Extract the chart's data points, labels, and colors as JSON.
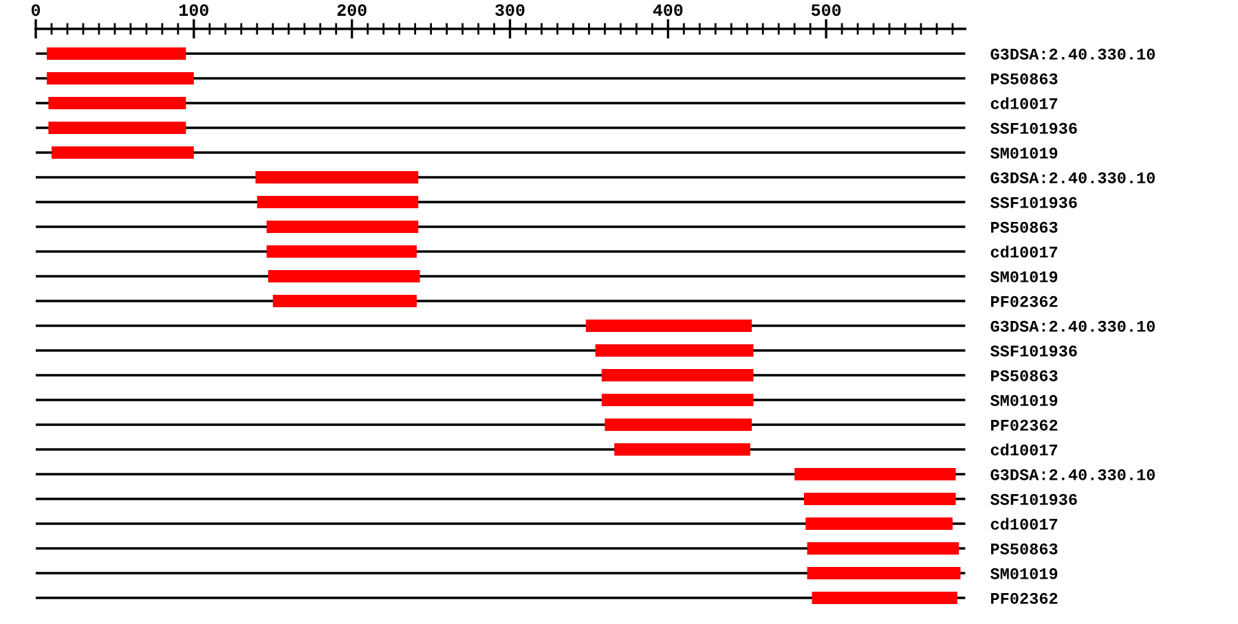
{
  "chart_data": {
    "type": "bar",
    "orientation": "horizontal",
    "color": "#ff0000",
    "categories": [
      "G3DSA:2.40.330.10",
      "PS50863",
      "cd10017",
      "SSF101936",
      "SM01019",
      "G3DSA:2.40.330.10",
      "SSF101936",
      "PS50863",
      "cd10017",
      "SM01019",
      "PF02362",
      "G3DSA:2.40.330.10",
      "SSF101936",
      "PS50863",
      "SM01019",
      "PF02362",
      "cd10017",
      "G3DSA:2.40.330.10",
      "SSF101936",
      "cd10017",
      "PS50863",
      "SM01019",
      "PF02362"
    ],
    "base": [
      7,
      7,
      8,
      8,
      10,
      139,
      140,
      146,
      146,
      147,
      150,
      348,
      354,
      358,
      358,
      360,
      366,
      480,
      486,
      487,
      488,
      488,
      491
    ],
    "values": [
      88,
      93,
      87,
      87,
      90,
      103,
      102,
      96,
      95,
      96,
      91,
      105,
      100,
      96,
      96,
      93,
      86,
      102,
      96,
      93,
      96,
      97,
      92
    ],
    "xlim": [
      0,
      588
    ],
    "xticks": [
      0,
      {
        "value": 10,
        "label": null
      },
      {
        "value": 20,
        "label": null
      },
      {
        "value": 30,
        "label": null
      },
      {
        "value": 40,
        "label": null
      },
      {
        "value": 50,
        "label": null
      },
      {
        "value": 60,
        "label": null
      },
      {
        "value": 70,
        "label": null
      },
      {
        "value": 80,
        "label": null
      },
      {
        "value": 90,
        "label": null
      },
      100,
      {
        "value": 110,
        "label": null
      },
      {
        "value": 120,
        "label": null
      },
      {
        "value": 130,
        "label": null
      },
      {
        "value": 140,
        "label": null
      },
      {
        "value": 150,
        "label": null
      },
      {
        "value": 160,
        "label": null
      },
      {
        "value": 170,
        "label": null
      },
      {
        "value": 180,
        "label": null
      },
      {
        "value": 190,
        "label": null
      },
      200,
      {
        "value": 210,
        "label": null
      },
      {
        "value": 220,
        "label": null
      },
      {
        "value": 230,
        "label": null
      },
      {
        "value": 240,
        "label": null
      },
      {
        "value": 250,
        "label": null
      },
      {
        "value": 260,
        "label": null
      },
      {
        "value": 270,
        "label": null
      },
      {
        "value": 280,
        "label": null
      },
      {
        "value": 290,
        "label": null
      },
      300,
      {
        "value": 310,
        "label": null
      },
      {
        "value": 320,
        "label": null
      },
      {
        "value": 330,
        "label": null
      },
      {
        "value": 340,
        "label": null
      },
      {
        "value": 350,
        "label": null
      },
      {
        "value": 360,
        "label": null
      },
      {
        "value": 370,
        "label": null
      },
      {
        "value": 380,
        "label": null
      },
      {
        "value": 390,
        "label": null
      },
      400,
      {
        "value": 410,
        "label": null
      },
      {
        "value": 420,
        "label": null
      },
      {
        "value": 430,
        "label": null
      },
      {
        "value": 440,
        "label": null
      },
      {
        "value": 450,
        "label": null
      },
      {
        "value": 460,
        "label": null
      },
      {
        "value": 470,
        "label": null
      },
      {
        "value": 480,
        "label": null
      },
      {
        "value": 490,
        "label": null
      },
      500,
      {
        "value": 510,
        "label": null
      },
      {
        "value": 520,
        "label": null
      },
      {
        "value": 530,
        "label": null
      },
      {
        "value": 540,
        "label": null
      },
      {
        "value": 550,
        "label": null
      },
      {
        "value": 560,
        "label": null
      },
      {
        "value": 570,
        "label": null
      },
      {
        "value": 580,
        "label": null
      }
    ],
    "grid": "y"
  }
}
